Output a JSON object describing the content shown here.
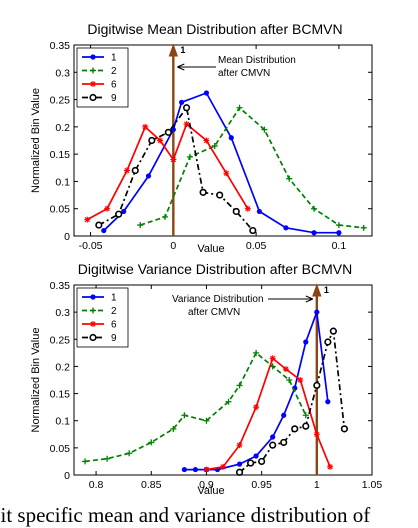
{
  "caption": "git specific mean and variance distribution of",
  "chart_data": [
    {
      "type": "line",
      "title": "Digitwise Mean Distribution after BCMVN",
      "xlabel": "Value",
      "ylabel": "Normalized Bin Value",
      "xlim": [
        -0.06,
        0.12
      ],
      "ylim": [
        0,
        0.35
      ],
      "xticks": [
        "-0.05",
        "0",
        "0.05",
        "0.1"
      ],
      "yticks": [
        "0",
        "0.05",
        "0.1",
        "0.15",
        "0.2",
        "0.25",
        "0.3",
        "0.35"
      ],
      "legend_position": "top-left",
      "series": [
        {
          "name": "1",
          "color": "#0000ff",
          "dash": "",
          "marker": "dot",
          "x": [
            -0.042,
            -0.03,
            -0.015,
            0.0,
            0.005,
            0.02,
            0.035,
            0.052,
            0.068,
            0.085,
            0.1
          ],
          "y": [
            0.01,
            0.045,
            0.11,
            0.195,
            0.245,
            0.262,
            0.18,
            0.045,
            0.015,
            0.006,
            0.006
          ]
        },
        {
          "name": "2",
          "color": "#008000",
          "dash": "5,3",
          "marker": "plus",
          "x": [
            -0.02,
            -0.005,
            0.01,
            0.025,
            0.04,
            0.055,
            0.07,
            0.085,
            0.1,
            0.115
          ],
          "y": [
            0.02,
            0.035,
            0.145,
            0.165,
            0.235,
            0.195,
            0.105,
            0.05,
            0.02,
            0.015
          ]
        },
        {
          "name": "6",
          "color": "#ff0000",
          "dash": "",
          "marker": "star",
          "x": [
            -0.052,
            -0.04,
            -0.028,
            -0.017,
            -0.008,
            0.0,
            0.008,
            0.02,
            0.032,
            0.045
          ],
          "y": [
            0.03,
            0.05,
            0.12,
            0.2,
            0.175,
            0.14,
            0.205,
            0.175,
            0.115,
            0.05
          ]
        },
        {
          "name": "9",
          "color": "#000000",
          "dash": "6,3,2,3",
          "marker": "circle",
          "x": [
            -0.045,
            -0.033,
            -0.023,
            -0.013,
            -0.003,
            0.008,
            0.018,
            0.028,
            0.038,
            0.048
          ],
          "y": [
            0.02,
            0.04,
            0.12,
            0.175,
            0.19,
            0.235,
            0.08,
            0.075,
            0.045,
            0.01
          ]
        }
      ],
      "reference_line": {
        "x": 0,
        "color": "#8b4513",
        "label": "1"
      },
      "annotation": [
        "Mean Distribution",
        "after CMVN"
      ]
    },
    {
      "type": "line",
      "title": "Digitwise Variance Distribution after BCMVN",
      "xlabel": "Value",
      "ylabel": "Normalized Bin Value",
      "xlim": [
        0.78,
        1.05
      ],
      "ylim": [
        0,
        0.35
      ],
      "xticks": [
        "0.8",
        "0.85",
        "0.9",
        "0.95",
        "1",
        "1.05"
      ],
      "yticks": [
        "0",
        "0.05",
        "0.1",
        "0.15",
        "0.2",
        "0.25",
        "0.3",
        "0.35"
      ],
      "legend_position": "top-left",
      "series": [
        {
          "name": "1",
          "color": "#0000ff",
          "dash": "",
          "marker": "dot",
          "x": [
            0.88,
            0.89,
            0.9,
            0.91,
            0.93,
            0.945,
            0.96,
            0.97,
            0.98,
            0.99,
            1.0,
            1.01
          ],
          "y": [
            0.01,
            0.01,
            0.01,
            0.01,
            0.02,
            0.035,
            0.07,
            0.11,
            0.16,
            0.245,
            0.3,
            0.135
          ]
        },
        {
          "name": "2",
          "color": "#008000",
          "dash": "5,3",
          "marker": "plus",
          "x": [
            0.79,
            0.81,
            0.83,
            0.85,
            0.87,
            0.88,
            0.9,
            0.92,
            0.93,
            0.945,
            0.96,
            0.975,
            0.99
          ],
          "y": [
            0.025,
            0.03,
            0.04,
            0.06,
            0.085,
            0.11,
            0.1,
            0.135,
            0.165,
            0.225,
            0.2,
            0.175,
            0.11
          ]
        },
        {
          "name": "6",
          "color": "#ff0000",
          "dash": "",
          "marker": "star",
          "x": [
            0.9,
            0.915,
            0.93,
            0.945,
            0.96,
            0.972,
            0.985,
            1.0,
            1.012
          ],
          "y": [
            0.01,
            0.015,
            0.055,
            0.125,
            0.215,
            0.195,
            0.175,
            0.075,
            0.015
          ]
        },
        {
          "name": "9",
          "color": "#000000",
          "dash": "6,3,2,3",
          "marker": "circle",
          "x": [
            0.93,
            0.94,
            0.95,
            0.96,
            0.97,
            0.98,
            0.99,
            1.0,
            1.01,
            1.015,
            1.025
          ],
          "y": [
            0.005,
            0.022,
            0.025,
            0.055,
            0.06,
            0.085,
            0.09,
            0.165,
            0.245,
            0.265,
            0.085
          ]
        }
      ],
      "reference_line": {
        "x": 1,
        "color": "#8b4513",
        "label": "1"
      },
      "annotation": [
        "Variance Distribution",
        "after CMVN"
      ]
    }
  ]
}
